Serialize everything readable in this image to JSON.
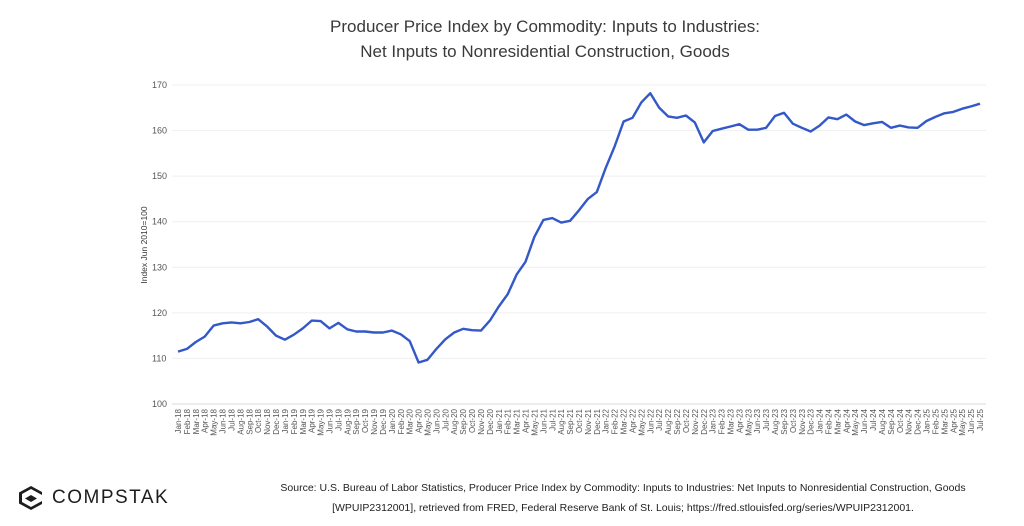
{
  "title_lines": [
    "Producer Price Index by Commodity: Inputs to Industries:",
    "Net Inputs to Nonresidential Construction, Goods"
  ],
  "source_lines": [
    "Source: U.S. Bureau of Labor Statistics, Producer Price Index by Commodity: Inputs to Industries: Net Inputs to Nonresidential Construction, Goods",
    "[WPUIP2312001], retrieved from FRED, Federal Reserve Bank of St. Louis; https://fred.stlouisfed.org/series/WPUIP2312001."
  ],
  "logo": {
    "text": "COMPSTAK"
  },
  "chart_data": {
    "type": "line",
    "title": "Producer Price Index by Commodity: Inputs to Industries: Net Inputs to Nonresidential Construction, Goods",
    "xlabel": "",
    "ylabel": "Index Jun 2010=100",
    "ylim": [
      100,
      170
    ],
    "yticks": [
      100,
      110,
      120,
      130,
      140,
      150,
      160,
      170
    ],
    "grid": true,
    "line_color": "#3358c8",
    "x": [
      "Jan-18",
      "Feb-18",
      "Mar-18",
      "Apr-18",
      "May-18",
      "Jun-18",
      "Jul-18",
      "Aug-18",
      "Sep-18",
      "Oct-18",
      "Nov-18",
      "Dec-18",
      "Jan-19",
      "Feb-19",
      "Mar-19",
      "Apr-19",
      "May-19",
      "Jun-19",
      "Jul-19",
      "Aug-19",
      "Sep-19",
      "Oct-19",
      "Nov-19",
      "Dec-19",
      "Jan-20",
      "Feb-20",
      "Mar-20",
      "Apr-20",
      "May-20",
      "Jun-20",
      "Jul-20",
      "Aug-20",
      "Sep-20",
      "Oct-20",
      "Nov-20",
      "Dec-20",
      "Jan-21",
      "Feb-21",
      "Mar-21",
      "Apr-21",
      "May-21",
      "Jun-21",
      "Jul-21",
      "Aug-21",
      "Sep-21",
      "Oct-21",
      "Nov-21",
      "Dec-21",
      "Jan-22",
      "Feb-22",
      "Mar-22",
      "Apr-22",
      "May-22",
      "Jun-22",
      "Jul-22",
      "Aug-22",
      "Sep-22",
      "Oct-22",
      "Nov-22",
      "Dec-22",
      "Jan-23",
      "Feb-23",
      "Mar-23",
      "Apr-23",
      "May-23",
      "Jun-23",
      "Jul-23",
      "Aug-23",
      "Sep-23",
      "Oct-23",
      "Nov-23",
      "Dec-23",
      "Jan-24",
      "Feb-24",
      "Mar-24",
      "Apr-24",
      "May-24",
      "Jun-24",
      "Jul-24",
      "Aug-24",
      "Sep-24",
      "Oct-24",
      "Nov-24",
      "Dec-24",
      "Jan-25",
      "Feb-25",
      "Mar-25",
      "Apr-25",
      "May-25",
      "Jun-25",
      "Jul-25"
    ],
    "y": [
      111.5,
      112.1,
      113.6,
      114.8,
      117.2,
      117.7,
      117.9,
      117.7,
      118.0,
      118.6,
      117.0,
      115.0,
      114.1,
      115.2,
      116.6,
      118.3,
      118.2,
      116.6,
      117.8,
      116.4,
      115.9,
      115.9,
      115.7,
      115.7,
      116.1,
      115.3,
      113.8,
      109.1,
      109.7,
      112.1,
      114.2,
      115.7,
      116.5,
      116.2,
      116.1,
      118.3,
      121.4,
      124.1,
      128.4,
      131.2,
      136.7,
      140.4,
      140.8,
      139.8,
      140.2,
      142.5,
      145.0,
      146.5,
      151.8,
      156.5,
      162.0,
      162.8,
      166.2,
      168.2,
      165.0,
      163.1,
      162.8,
      163.3,
      161.8,
      157.4,
      159.9,
      160.4,
      160.9,
      161.4,
      160.2,
      160.2,
      160.6,
      163.2,
      163.9,
      161.5,
      160.6,
      159.8,
      161.1,
      162.9,
      162.5,
      163.5,
      162.0,
      161.2,
      161.6,
      161.9,
      160.6,
      161.1,
      160.7,
      160.6,
      162.1,
      163.0,
      163.8,
      164.1,
      164.8,
      165.3,
      165.9
    ]
  }
}
